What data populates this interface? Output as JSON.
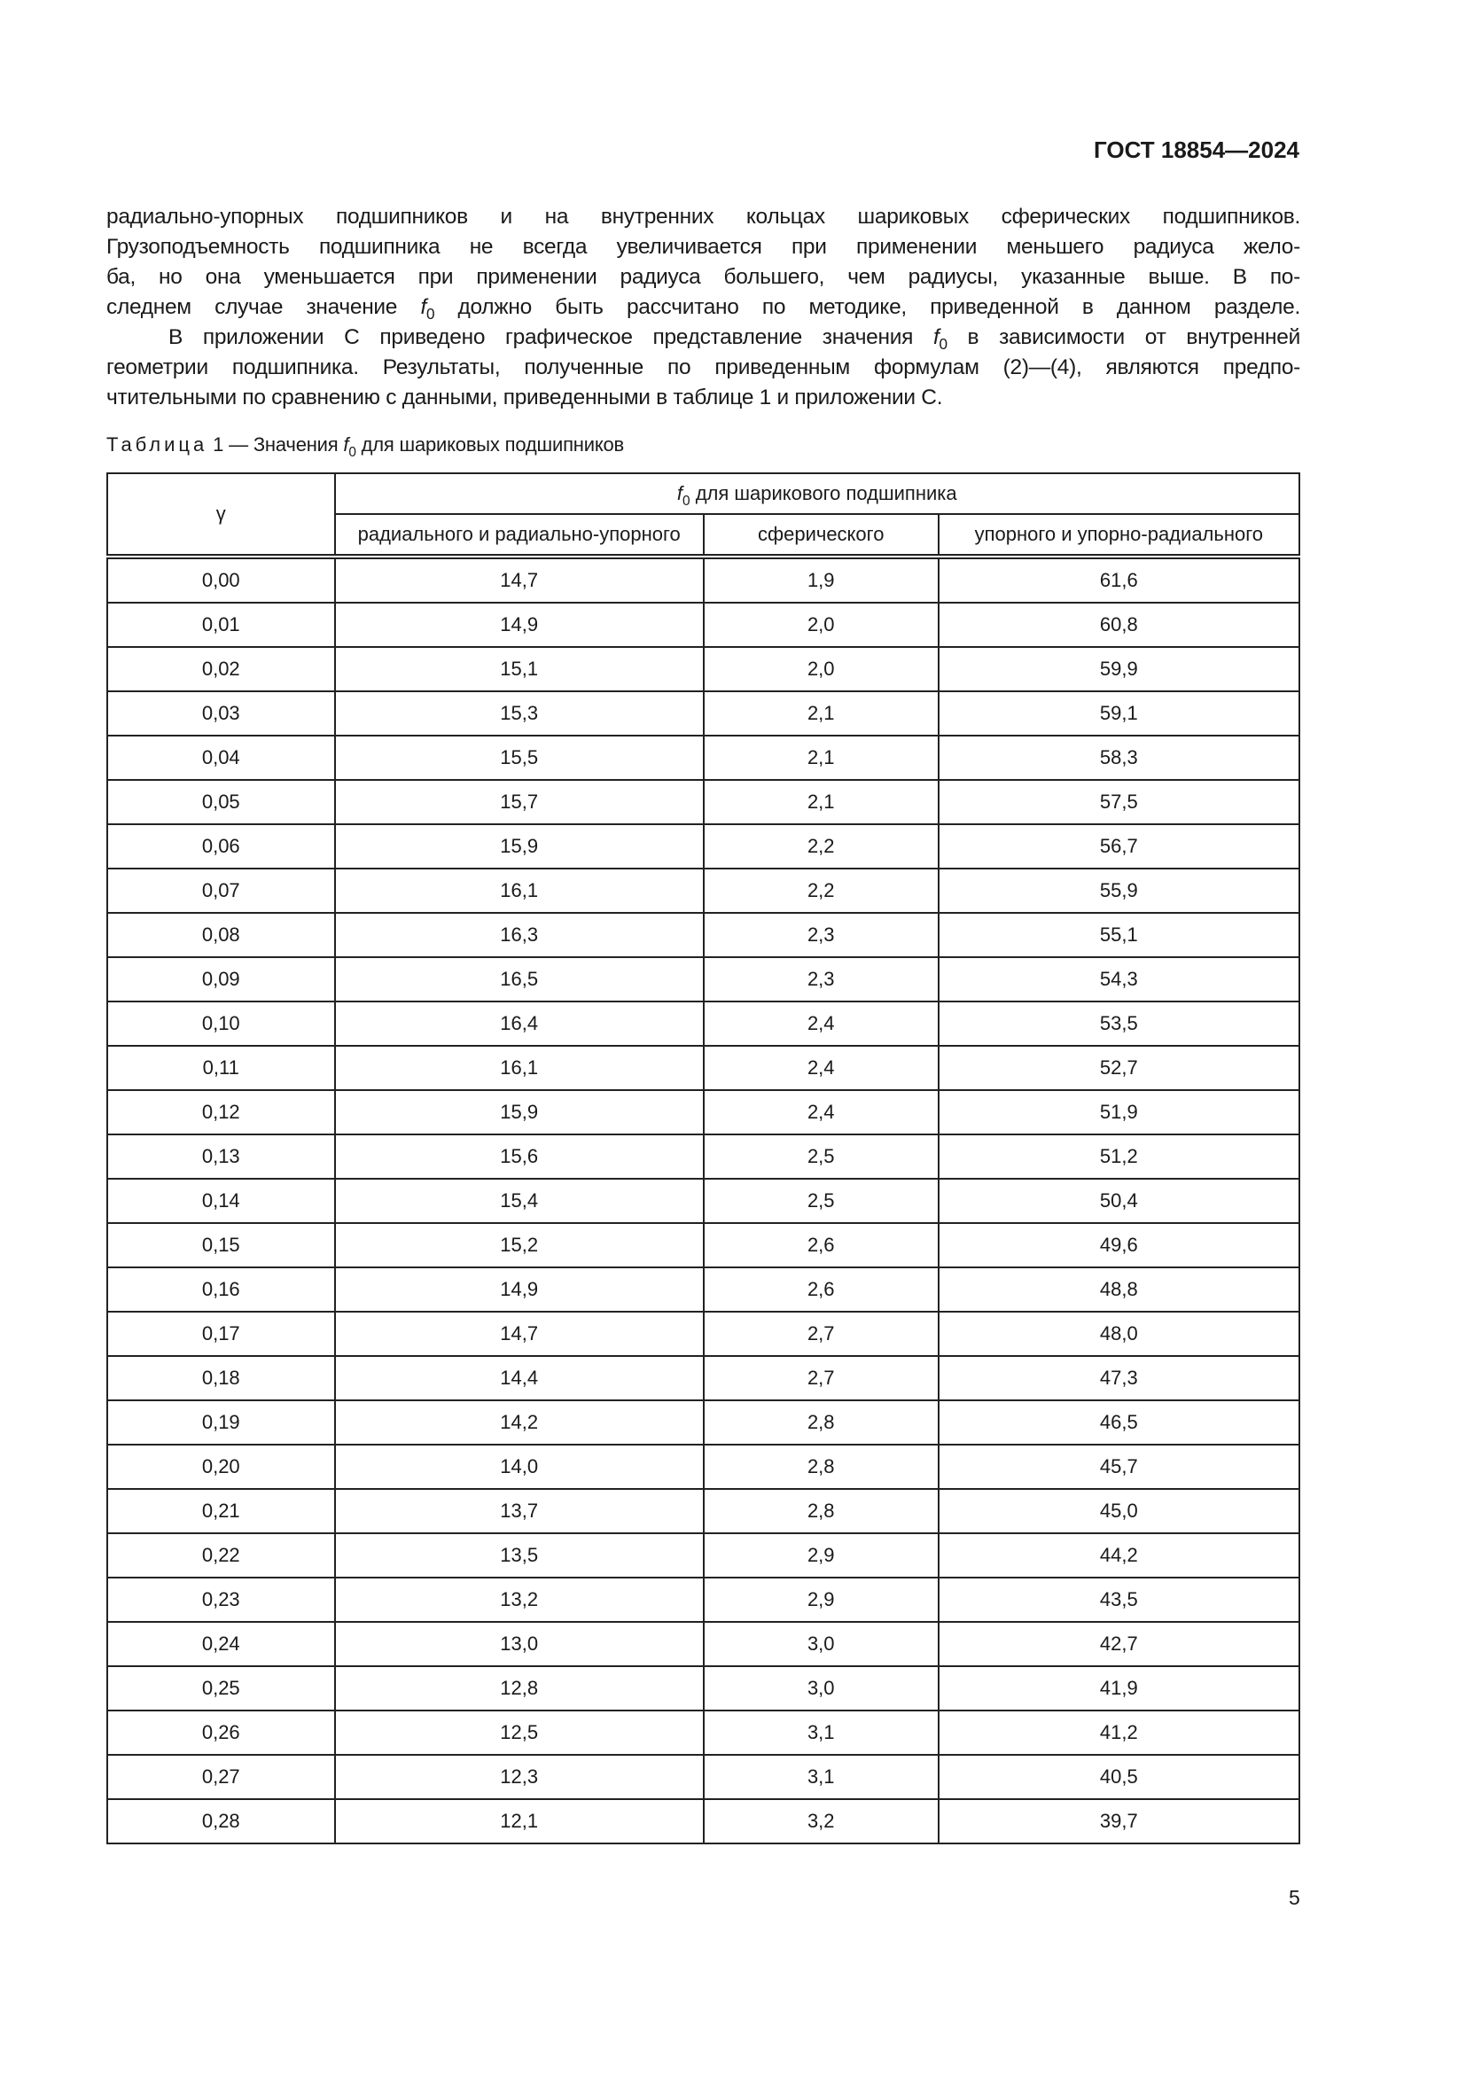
{
  "header": {
    "doc_id": "ГОСТ 18854—2024"
  },
  "paragraphs": {
    "l1": "радиально-упорных подшипников и на внутренних кольцах шариковых сферических подшипников.",
    "l2": "Грузоподъемность подшипника не всегда увеличивается при применении меньшего радиуса жело-",
    "l3": "ба, но она уменьшается при применении радиуса большего, чем радиусы, указанные выше. В по-",
    "l4a": "следнем случае значение ",
    "l4b": " должно быть рассчитано по методике, приведенной в данном разделе.",
    "l5a": "В приложении С приведено графическое представление значения ",
    "l5b": " в зависимости от внутренней",
    "l6": "геометрии подшипника. Результаты, полученные по приведенным формулам (2)—(4), являются предпо-",
    "l7": "чтительными по сравнению с данными, приведенными в таблице 1 и приложении С."
  },
  "symbol": {
    "f": "f",
    "sub": "0"
  },
  "caption": {
    "label": "Таблица",
    "rest": " 1 — Значения ",
    "tail": " для шариковых подшипников"
  },
  "table": {
    "gamma_header": "γ",
    "group_header": " для шарикового подшипника",
    "columns": [
      "радиального и радиально-упорного",
      "сферического",
      "упорного и упорно-радиального"
    ],
    "rows": [
      [
        "0,00",
        "14,7",
        "1,9",
        "61,6"
      ],
      [
        "0,01",
        "14,9",
        "2,0",
        "60,8"
      ],
      [
        "0,02",
        "15,1",
        "2,0",
        "59,9"
      ],
      [
        "0,03",
        "15,3",
        "2,1",
        "59,1"
      ],
      [
        "0,04",
        "15,5",
        "2,1",
        "58,3"
      ],
      [
        "0,05",
        "15,7",
        "2,1",
        "57,5"
      ],
      [
        "0,06",
        "15,9",
        "2,2",
        "56,7"
      ],
      [
        "0,07",
        "16,1",
        "2,2",
        "55,9"
      ],
      [
        "0,08",
        "16,3",
        "2,3",
        "55,1"
      ],
      [
        "0,09",
        "16,5",
        "2,3",
        "54,3"
      ],
      [
        "0,10",
        "16,4",
        "2,4",
        "53,5"
      ],
      [
        "0,11",
        "16,1",
        "2,4",
        "52,7"
      ],
      [
        "0,12",
        "15,9",
        "2,4",
        "51,9"
      ],
      [
        "0,13",
        "15,6",
        "2,5",
        "51,2"
      ],
      [
        "0,14",
        "15,4",
        "2,5",
        "50,4"
      ],
      [
        "0,15",
        "15,2",
        "2,6",
        "49,6"
      ],
      [
        "0,16",
        "14,9",
        "2,6",
        "48,8"
      ],
      [
        "0,17",
        "14,7",
        "2,7",
        "48,0"
      ],
      [
        "0,18",
        "14,4",
        "2,7",
        "47,3"
      ],
      [
        "0,19",
        "14,2",
        "2,8",
        "46,5"
      ],
      [
        "0,20",
        "14,0",
        "2,8",
        "45,7"
      ],
      [
        "0,21",
        "13,7",
        "2,8",
        "45,0"
      ],
      [
        "0,22",
        "13,5",
        "2,9",
        "44,2"
      ],
      [
        "0,23",
        "13,2",
        "2,9",
        "43,5"
      ],
      [
        "0,24",
        "13,0",
        "3,0",
        "42,7"
      ],
      [
        "0,25",
        "12,8",
        "3,0",
        "41,9"
      ],
      [
        "0,26",
        "12,5",
        "3,1",
        "41,2"
      ],
      [
        "0,27",
        "12,3",
        "3,1",
        "40,5"
      ],
      [
        "0,28",
        "12,1",
        "3,2",
        "39,7"
      ]
    ]
  },
  "footer": {
    "page_number": "5"
  }
}
